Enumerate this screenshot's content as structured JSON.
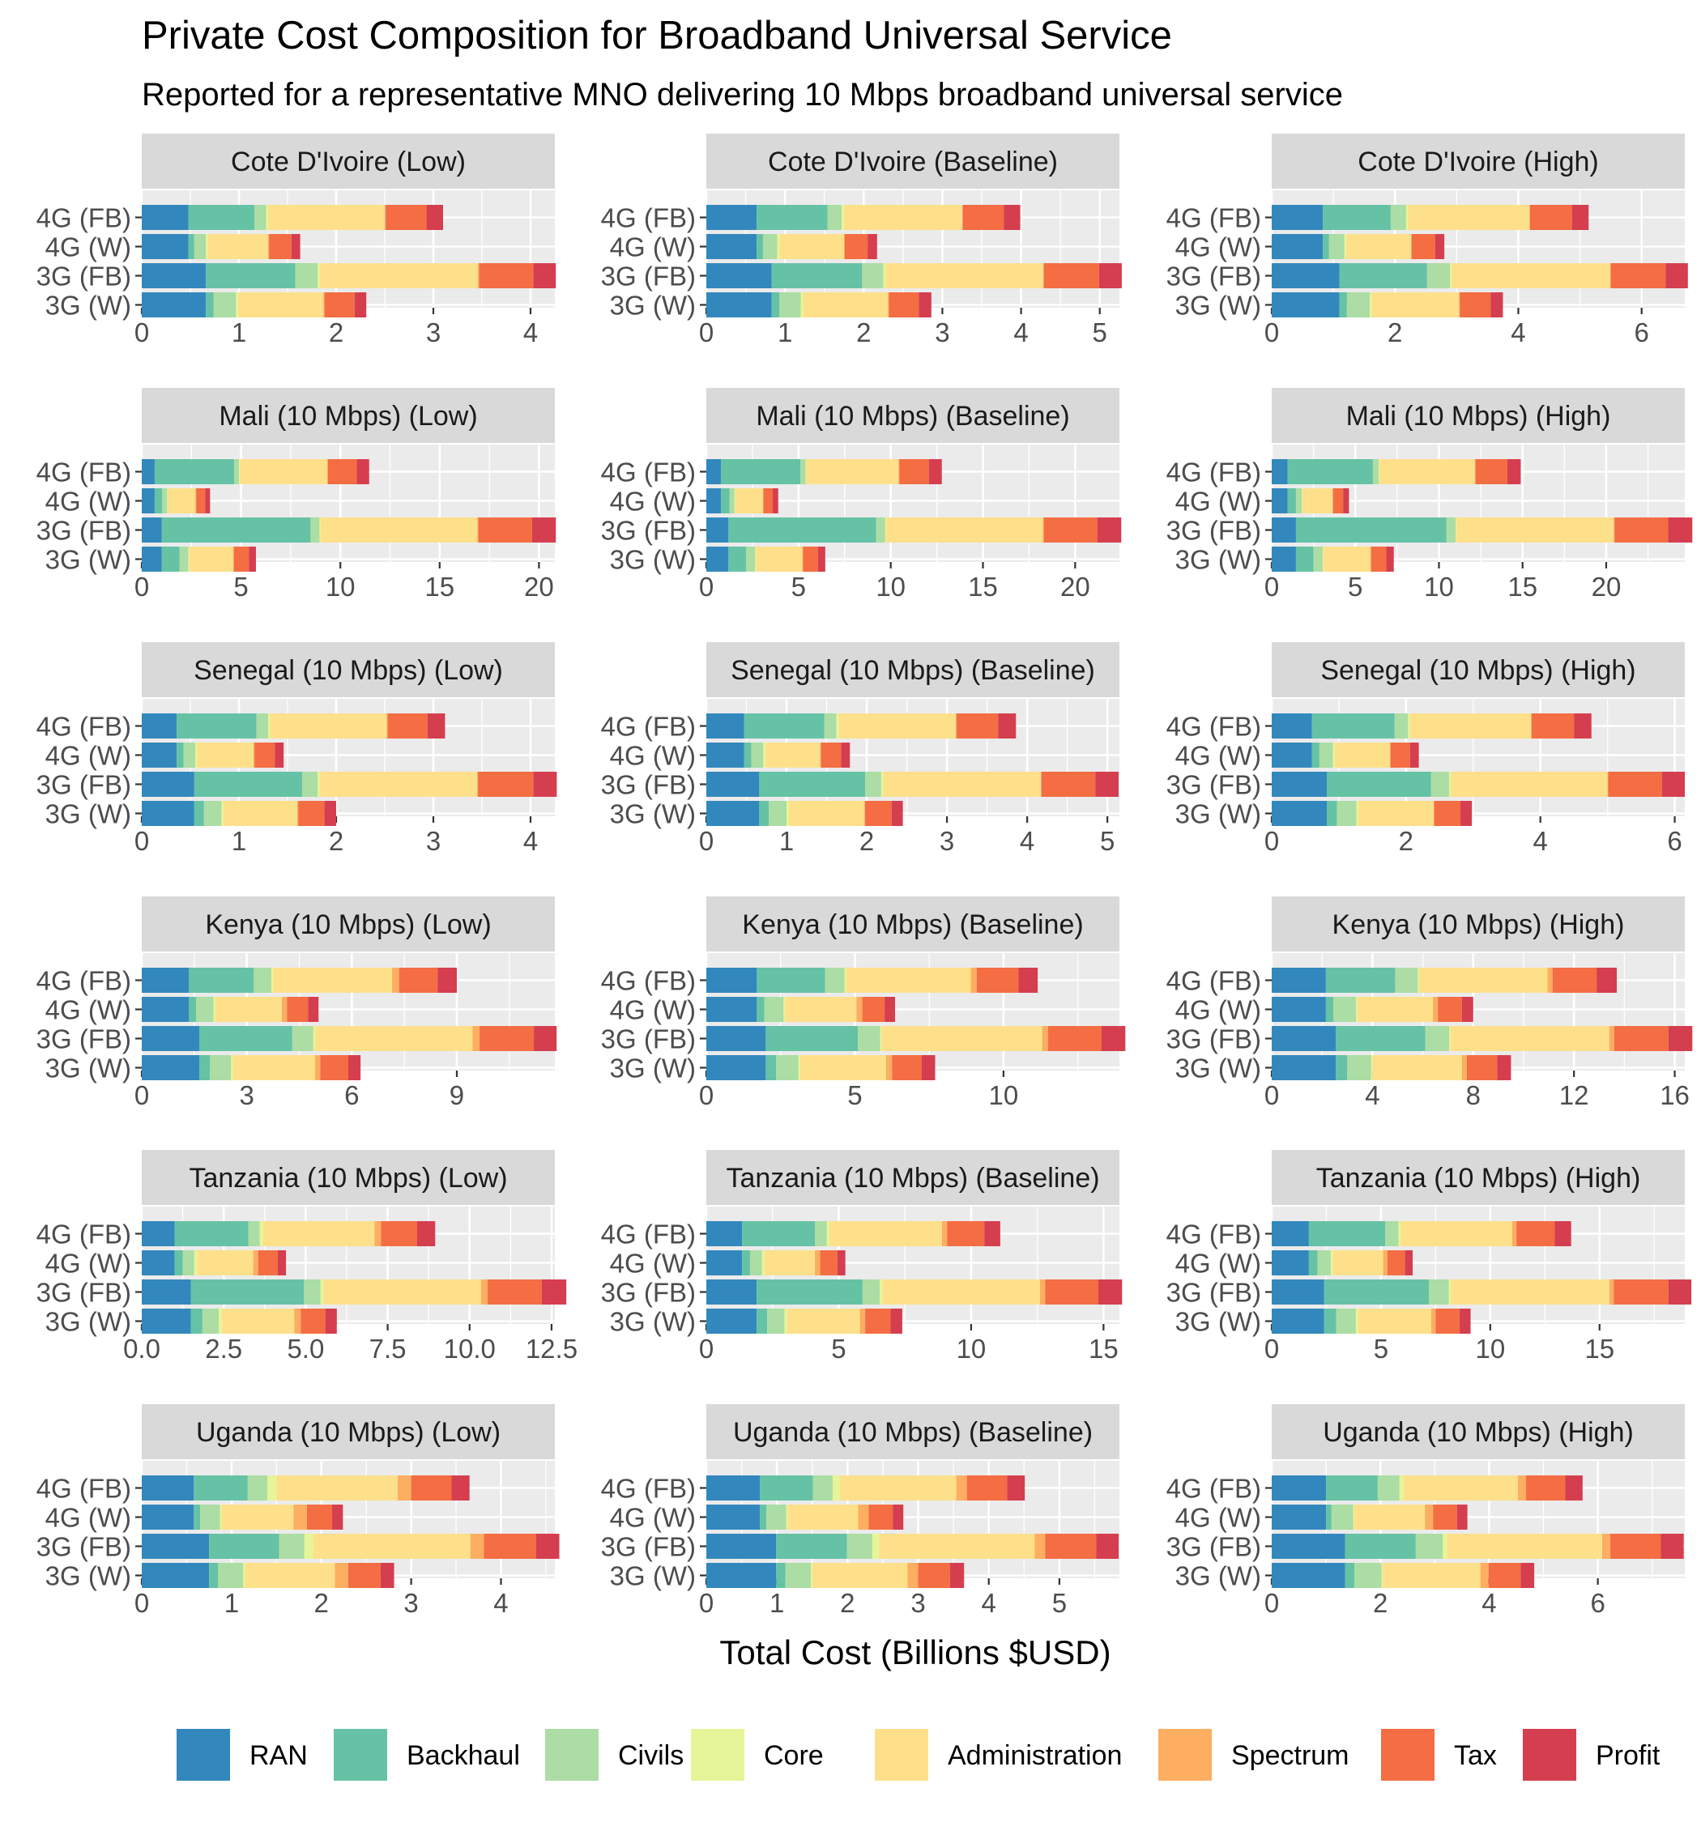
{
  "chart_data": {
    "type": "bar",
    "orientation": "horizontal",
    "stacked": true,
    "title": "Private Cost Composition for Broadband Universal Service",
    "subtitle": "Reported for a representative MNO delivering 10 Mbps broadband universal service",
    "xlabel": "Total Cost (Billions $USD)",
    "ylabel": "",
    "grid": true,
    "legend_position": "bottom",
    "categories": [
      "4G (FB)",
      "4G (W)",
      "3G (FB)",
      "3G (W)"
    ],
    "components": [
      {
        "name": "RAN",
        "color": "#3288BD"
      },
      {
        "name": "Backhaul",
        "color": "#66C2A5"
      },
      {
        "name": "Civils",
        "color": "#ABDDA4"
      },
      {
        "name": "Core",
        "color": "#E6F598"
      },
      {
        "name": "Administration",
        "color": "#FEE08B"
      },
      {
        "name": "Spectrum",
        "color": "#FDAE61"
      },
      {
        "name": "Tax",
        "color": "#F46D43"
      },
      {
        "name": "Profit",
        "color": "#D53E4F"
      }
    ],
    "panels": [
      {
        "title": "Cote D'Ivoire (Low)",
        "xlim": [
          0,
          4.25
        ],
        "ticks": [
          0,
          1,
          2,
          3,
          4
        ],
        "series": [
          [
            0.48,
            0.68,
            0.12,
            0.02,
            1.2,
            0.01,
            0.42,
            0.17
          ],
          [
            0.48,
            0.06,
            0.12,
            0.02,
            0.62,
            0.01,
            0.23,
            0.09
          ],
          [
            0.66,
            0.92,
            0.23,
            0.02,
            1.63,
            0.01,
            0.56,
            0.23
          ],
          [
            0.66,
            0.08,
            0.23,
            0.02,
            0.88,
            0.01,
            0.31,
            0.12
          ]
        ]
      },
      {
        "title": "Cote D'Ivoire (Baseline)",
        "xlim": [
          0,
          5.25
        ],
        "ticks": [
          0,
          1,
          2,
          3,
          4,
          5
        ],
        "series": [
          [
            0.64,
            0.9,
            0.18,
            0.03,
            1.5,
            0.01,
            0.52,
            0.21
          ],
          [
            0.64,
            0.08,
            0.18,
            0.03,
            0.82,
            0.01,
            0.29,
            0.12
          ],
          [
            0.83,
            1.15,
            0.27,
            0.03,
            2.0,
            0.01,
            0.7,
            0.29
          ],
          [
            0.83,
            0.1,
            0.27,
            0.03,
            1.08,
            0.01,
            0.38,
            0.16
          ]
        ]
      },
      {
        "title": "Cote D'Ivoire (High)",
        "xlim": [
          0,
          6.7
        ],
        "ticks": [
          0,
          2,
          4,
          6
        ],
        "series": [
          [
            0.83,
            1.1,
            0.25,
            0.03,
            1.97,
            0.01,
            0.68,
            0.27
          ],
          [
            0.83,
            0.1,
            0.25,
            0.03,
            1.05,
            0.01,
            0.38,
            0.15
          ],
          [
            1.1,
            1.42,
            0.37,
            0.03,
            2.57,
            0.01,
            0.89,
            0.36
          ],
          [
            1.1,
            0.12,
            0.37,
            0.03,
            1.42,
            0.01,
            0.5,
            0.2
          ]
        ]
      },
      {
        "title": "Mali (10 Mbps) (Low)",
        "xlim": [
          0,
          20.8
        ],
        "ticks": [
          0,
          5,
          10,
          15,
          20
        ],
        "series": [
          [
            0.65,
            4.0,
            0.25,
            0.03,
            4.4,
            0.05,
            1.45,
            0.62
          ],
          [
            0.65,
            0.38,
            0.25,
            0.03,
            1.4,
            0.03,
            0.45,
            0.25
          ],
          [
            1.0,
            7.5,
            0.45,
            0.05,
            7.9,
            0.05,
            2.7,
            1.2
          ],
          [
            1.0,
            0.9,
            0.45,
            0.05,
            2.2,
            0.05,
            0.75,
            0.35
          ]
        ]
      },
      {
        "title": "Mali (10 Mbps) (Baseline)",
        "xlim": [
          0,
          22.4
        ],
        "ticks": [
          0,
          5,
          10,
          15,
          20
        ],
        "series": [
          [
            0.8,
            4.3,
            0.28,
            0.04,
            5.0,
            0.05,
            1.6,
            0.7
          ],
          [
            0.8,
            0.45,
            0.28,
            0.04,
            1.5,
            0.03,
            0.5,
            0.3
          ],
          [
            1.2,
            8.0,
            0.5,
            0.05,
            8.5,
            0.05,
            2.9,
            1.3
          ],
          [
            1.2,
            0.95,
            0.5,
            0.05,
            2.5,
            0.05,
            0.8,
            0.4
          ]
        ]
      },
      {
        "title": "Mali (10 Mbps) (High)",
        "xlim": [
          0,
          24.7
        ],
        "ticks": [
          0,
          5,
          10,
          15,
          20
        ],
        "series": [
          [
            0.95,
            5.1,
            0.35,
            0.04,
            5.7,
            0.05,
            1.9,
            0.8
          ],
          [
            0.95,
            0.5,
            0.35,
            0.04,
            1.8,
            0.03,
            0.6,
            0.35
          ],
          [
            1.45,
            9.0,
            0.55,
            0.05,
            9.4,
            0.05,
            3.2,
            1.45
          ],
          [
            1.45,
            1.05,
            0.55,
            0.05,
            2.8,
            0.05,
            0.9,
            0.45
          ]
        ]
      },
      {
        "title": "Senegal (10 Mbps) (Low)",
        "xlim": [
          0,
          4.25
        ],
        "ticks": [
          0,
          1,
          2,
          3,
          4
        ],
        "series": [
          [
            0.36,
            0.82,
            0.12,
            0.02,
            1.2,
            0.01,
            0.41,
            0.18
          ],
          [
            0.36,
            0.07,
            0.12,
            0.02,
            0.58,
            0.01,
            0.21,
            0.09
          ],
          [
            0.54,
            1.11,
            0.16,
            0.02,
            1.62,
            0.01,
            0.57,
            0.24
          ],
          [
            0.54,
            0.1,
            0.18,
            0.02,
            0.76,
            0.01,
            0.27,
            0.12
          ]
        ]
      },
      {
        "title": "Senegal (10 Mbps) (Baseline)",
        "xlim": [
          0,
          5.15
        ],
        "ticks": [
          0,
          1,
          2,
          3,
          4,
          5
        ],
        "series": [
          [
            0.47,
            1.0,
            0.15,
            0.03,
            1.46,
            0.01,
            0.52,
            0.22
          ],
          [
            0.47,
            0.09,
            0.15,
            0.03,
            0.68,
            0.01,
            0.25,
            0.11
          ],
          [
            0.66,
            1.32,
            0.2,
            0.03,
            1.96,
            0.01,
            0.67,
            0.29
          ],
          [
            0.66,
            0.12,
            0.22,
            0.03,
            0.94,
            0.01,
            0.33,
            0.14
          ]
        ]
      },
      {
        "title": "Senegal (10 Mbps) (High)",
        "xlim": [
          0,
          6.15
        ],
        "ticks": [
          0,
          2,
          4,
          6
        ],
        "series": [
          [
            0.6,
            1.23,
            0.2,
            0.03,
            1.8,
            0.01,
            0.63,
            0.26
          ],
          [
            0.6,
            0.11,
            0.2,
            0.03,
            0.82,
            0.01,
            0.29,
            0.13
          ],
          [
            0.82,
            1.55,
            0.27,
            0.03,
            2.33,
            0.01,
            0.8,
            0.34
          ],
          [
            0.82,
            0.15,
            0.29,
            0.03,
            1.12,
            0.01,
            0.39,
            0.17
          ]
        ]
      },
      {
        "title": "Kenya (10 Mbps) (Low)",
        "xlim": [
          0,
          11.8
        ],
        "ticks": [
          0,
          3,
          6,
          9
        ],
        "series": [
          [
            1.35,
            1.85,
            0.5,
            0.05,
            3.4,
            0.2,
            1.1,
            0.55
          ],
          [
            1.35,
            0.2,
            0.5,
            0.05,
            1.9,
            0.15,
            0.6,
            0.3
          ],
          [
            1.65,
            2.65,
            0.6,
            0.05,
            4.5,
            0.2,
            1.55,
            0.65
          ],
          [
            1.65,
            0.3,
            0.6,
            0.05,
            2.35,
            0.15,
            0.8,
            0.35
          ]
        ]
      },
      {
        "title": "Kenya (10 Mbps) (Baseline)",
        "xlim": [
          0,
          13.9
        ],
        "ticks": [
          0,
          5,
          10
        ],
        "series": [
          [
            1.7,
            2.3,
            0.65,
            0.05,
            4.2,
            0.2,
            1.4,
            0.65
          ],
          [
            1.7,
            0.25,
            0.65,
            0.05,
            2.4,
            0.2,
            0.75,
            0.35
          ],
          [
            2.0,
            3.1,
            0.75,
            0.05,
            5.4,
            0.2,
            1.8,
            0.8
          ],
          [
            2.0,
            0.35,
            0.75,
            0.05,
            2.9,
            0.2,
            1.0,
            0.45
          ]
        ]
      },
      {
        "title": "Kenya (10 Mbps) (High)",
        "xlim": [
          0,
          16.4
        ],
        "ticks": [
          0,
          4,
          8,
          12,
          16
        ],
        "series": [
          [
            2.15,
            2.75,
            0.9,
            0.05,
            5.1,
            0.2,
            1.75,
            0.8
          ],
          [
            2.15,
            0.3,
            0.9,
            0.05,
            3.0,
            0.2,
            0.95,
            0.45
          ],
          [
            2.55,
            3.55,
            0.95,
            0.05,
            6.3,
            0.2,
            2.15,
            0.95
          ],
          [
            2.55,
            0.45,
            0.95,
            0.05,
            3.55,
            0.2,
            1.2,
            0.55
          ]
        ]
      },
      {
        "title": "Tanzania (10 Mbps) (Low)",
        "xlim": [
          0,
          12.6
        ],
        "ticks": [
          0,
          2.5,
          5,
          7.5,
          10,
          12.5
        ],
        "tick_labels": [
          "0.0",
          "2.5",
          "5.0",
          "7.5",
          "10.0",
          "12.5"
        ],
        "series": [
          [
            1.0,
            2.25,
            0.35,
            0.1,
            3.4,
            0.2,
            1.1,
            0.55
          ],
          [
            1.0,
            0.25,
            0.35,
            0.1,
            1.7,
            0.15,
            0.6,
            0.25
          ],
          [
            1.5,
            3.45,
            0.5,
            0.1,
            4.8,
            0.2,
            1.65,
            0.75
          ],
          [
            1.5,
            0.35,
            0.5,
            0.1,
            2.2,
            0.2,
            0.75,
            0.35
          ]
        ]
      },
      {
        "title": "Tanzania (10 Mbps) (Baseline)",
        "xlim": [
          0,
          15.6
        ],
        "ticks": [
          0,
          5,
          10,
          15
        ],
        "series": [
          [
            1.35,
            2.75,
            0.45,
            0.1,
            4.25,
            0.2,
            1.4,
            0.6
          ],
          [
            1.35,
            0.3,
            0.45,
            0.1,
            1.9,
            0.2,
            0.65,
            0.3
          ],
          [
            1.9,
            4.0,
            0.65,
            0.1,
            5.95,
            0.2,
            2.0,
            0.9
          ],
          [
            1.9,
            0.4,
            0.65,
            0.1,
            2.75,
            0.2,
            0.95,
            0.45
          ]
        ]
      },
      {
        "title": "Tanzania (10 Mbps) (High)",
        "xlim": [
          0,
          18.9
        ],
        "ticks": [
          0,
          5,
          10,
          15
        ],
        "series": [
          [
            1.7,
            3.5,
            0.6,
            0.1,
            5.1,
            0.2,
            1.75,
            0.75
          ],
          [
            1.7,
            0.4,
            0.6,
            0.1,
            2.3,
            0.2,
            0.8,
            0.35
          ],
          [
            2.4,
            4.8,
            0.9,
            0.1,
            7.25,
            0.2,
            2.5,
            1.05
          ],
          [
            2.4,
            0.55,
            0.9,
            0.1,
            3.35,
            0.2,
            1.1,
            0.5
          ]
        ]
      },
      {
        "title": "Uganda (10 Mbps) (Low)",
        "xlim": [
          0,
          4.6
        ],
        "ticks": [
          0,
          1,
          2,
          3,
          4
        ],
        "series": [
          [
            0.58,
            0.6,
            0.22,
            0.1,
            1.35,
            0.15,
            0.45,
            0.2
          ],
          [
            0.58,
            0.07,
            0.22,
            0.02,
            0.8,
            0.15,
            0.28,
            0.12
          ],
          [
            0.75,
            0.78,
            0.28,
            0.1,
            1.75,
            0.15,
            0.58,
            0.26
          ],
          [
            0.75,
            0.1,
            0.28,
            0.02,
            1.0,
            0.15,
            0.36,
            0.15
          ]
        ]
      },
      {
        "title": "Uganda (10 Mbps) (Baseline)",
        "xlim": [
          0,
          5.85
        ],
        "ticks": [
          0,
          1,
          2,
          3,
          4,
          5
        ],
        "series": [
          [
            0.76,
            0.75,
            0.28,
            0.1,
            1.65,
            0.15,
            0.57,
            0.25
          ],
          [
            0.76,
            0.09,
            0.28,
            0.02,
            1.0,
            0.15,
            0.34,
            0.15
          ],
          [
            0.99,
            1.0,
            0.36,
            0.1,
            2.2,
            0.15,
            0.72,
            0.32
          ],
          [
            0.99,
            0.13,
            0.36,
            0.02,
            1.35,
            0.15,
            0.45,
            0.2
          ]
        ]
      },
      {
        "title": "Uganda (10 Mbps) (High)",
        "xlim": [
          0,
          7.6
        ],
        "ticks": [
          0,
          2,
          4,
          6
        ],
        "series": [
          [
            1.0,
            0.95,
            0.4,
            0.08,
            2.1,
            0.15,
            0.72,
            0.32
          ],
          [
            1.0,
            0.1,
            0.4,
            0.02,
            1.3,
            0.15,
            0.44,
            0.19
          ],
          [
            1.35,
            1.3,
            0.5,
            0.08,
            2.85,
            0.15,
            0.93,
            0.42
          ],
          [
            1.35,
            0.17,
            0.5,
            0.02,
            1.8,
            0.15,
            0.59,
            0.25
          ]
        ]
      }
    ]
  }
}
